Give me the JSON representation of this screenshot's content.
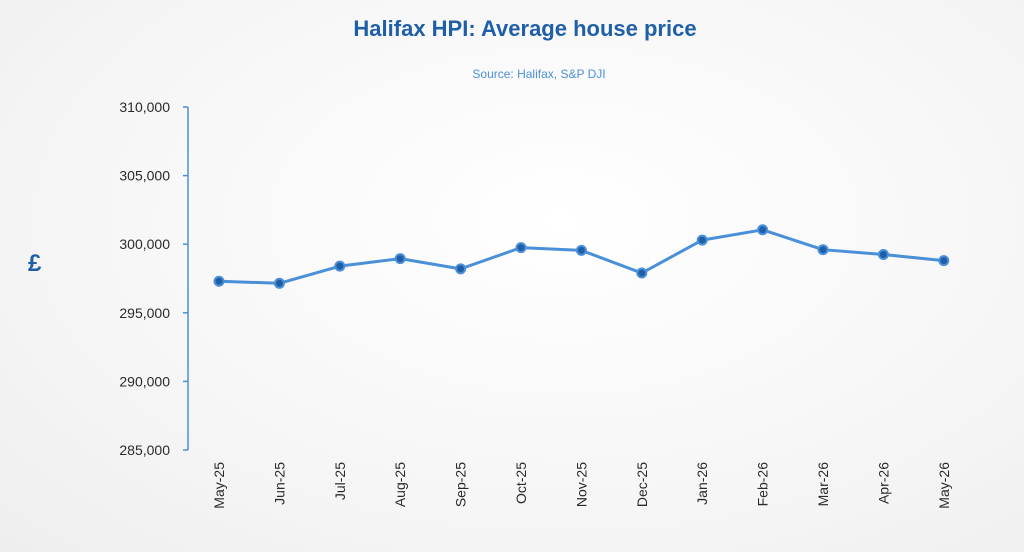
{
  "chart_data": {
    "type": "line",
    "title": "Halifax HPI: Average house price",
    "subtitle": "Source: Halifax, S&P DJI",
    "ylabel": "£",
    "xlabel": "",
    "ylim": [
      285000,
      310000
    ],
    "yticks": [
      310000,
      305000,
      300000,
      295000,
      290000,
      285000
    ],
    "ytick_labels": [
      "310,000",
      "305,000",
      "300,000",
      "295,000",
      "290,000",
      "285,000"
    ],
    "categories": [
      "May-25",
      "Jun-25",
      "Jul-25",
      "Aug-25",
      "Sep-25",
      "Oct-25",
      "Nov-25",
      "Dec-25",
      "Jan-26",
      "Feb-26",
      "Mar-26",
      "Apr-26",
      "May-26"
    ],
    "series": [
      {
        "values": [
          297300,
          297150,
          298400,
          298950,
          298200,
          299750,
          299550,
          297900,
          300300,
          301050,
          299600,
          299250,
          298800
        ]
      }
    ],
    "line_color": "#4a90d9",
    "marker_color": "#1f5fa8",
    "axis_color": "#4a90d9",
    "grid": false,
    "legend": "none"
  }
}
